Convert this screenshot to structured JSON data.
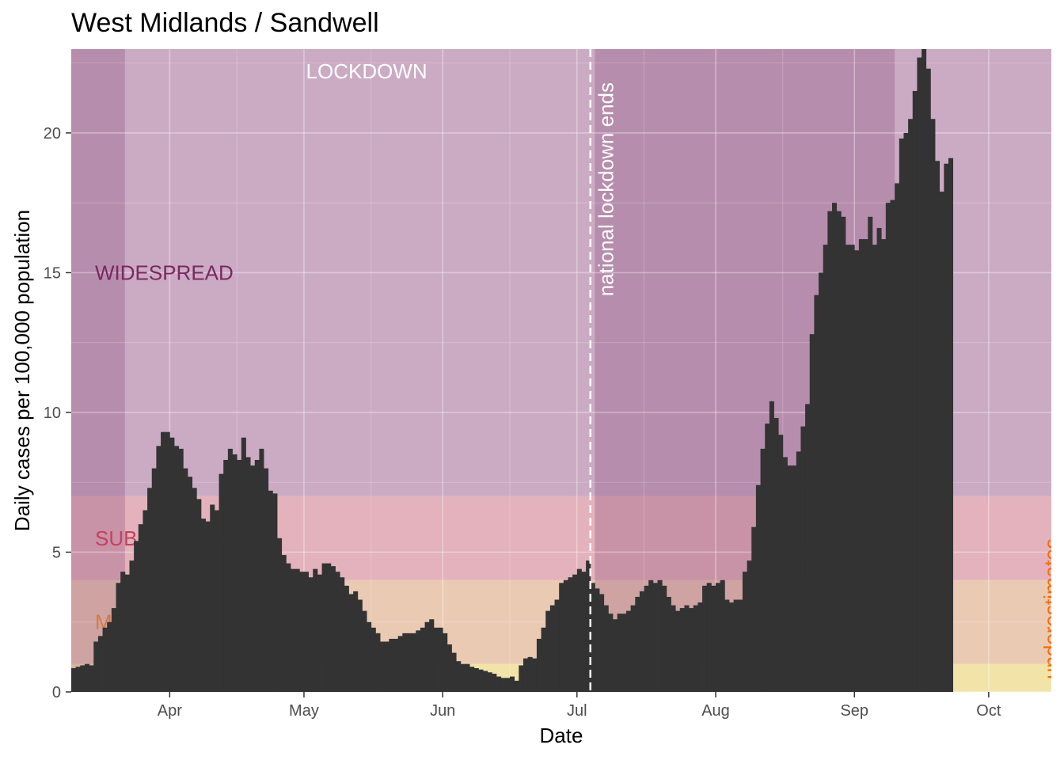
{
  "chart_data": {
    "type": "bar",
    "title": "West Midlands / Sandwell",
    "xlabel": "Date",
    "ylabel": "Daily cases per 100,000 population",
    "x_start": "2020-03-10",
    "x_end": "2020-10-15",
    "ylim": [
      0,
      23
    ],
    "y_ticks": [
      0,
      5,
      10,
      15,
      20
    ],
    "x_ticks": [
      {
        "date": "2020-04-01",
        "label": "Apr"
      },
      {
        "date": "2020-05-01",
        "label": "May"
      },
      {
        "date": "2020-06-01",
        "label": "Jun"
      },
      {
        "date": "2020-07-01",
        "label": "Jul"
      },
      {
        "date": "2020-08-01",
        "label": "Aug"
      },
      {
        "date": "2020-09-01",
        "label": "Sep"
      },
      {
        "date": "2020-10-01",
        "label": "Oct"
      }
    ],
    "grid": true,
    "bar_color": "#333333",
    "bands": [
      {
        "label": "",
        "ymin": 0,
        "ymax": 1,
        "color": "#f2e4a8"
      },
      {
        "label": "MODERATE",
        "ymin": 1,
        "ymax": 4,
        "color": "#ebcab3"
      },
      {
        "label": "SUBSTANTIAL",
        "ymin": 4,
        "ymax": 7,
        "color": "#e3b2bc"
      },
      {
        "label": "WIDESPREAD",
        "ymin": 7,
        "ymax": 23,
        "color": "#cbabc4"
      }
    ],
    "band_label_colors": {
      "WIDESPREAD": "#7a2861",
      "SUBSTANTIAL": "#c8405c",
      "MODERATE": "#d87844"
    },
    "shaded_periods": [
      {
        "start": "2020-03-10",
        "end": "2020-03-22",
        "color": "#8a4a78",
        "opacity": 0.3
      },
      {
        "start": "2020-07-05",
        "end": "2020-09-10",
        "color": "#8a4a78",
        "opacity": 0.3
      }
    ],
    "lockdown_label": "LOCKDOWN",
    "lockdown_label_date": "2020-05-15",
    "lockdown_label_y": 22.2,
    "vline": {
      "date": "2020-07-04",
      "label": "national lockdown ends",
      "color": "#ffffff"
    },
    "underestimates": {
      "label": "underestimates",
      "color": "#ff6a00",
      "date": "2020-10-12"
    },
    "daily_values": [
      0.85,
      0.9,
      0.95,
      1.0,
      0.95,
      1.8,
      2.0,
      2.3,
      2.5,
      3.0,
      3.9,
      4.3,
      4.2,
      4.7,
      5.4,
      6.0,
      6.5,
      7.3,
      8.0,
      8.8,
      9.3,
      9.3,
      9.1,
      8.8,
      8.7,
      8.0,
      7.7,
      7.3,
      6.9,
      6.2,
      6.1,
      6.7,
      6.5,
      7.8,
      8.3,
      8.7,
      8.5,
      8.3,
      9.1,
      8.4,
      8.1,
      8.3,
      8.7,
      8.0,
      7.2,
      7.1,
      5.5,
      4.9,
      4.6,
      4.4,
      4.4,
      4.3,
      4.3,
      4.1,
      4.4,
      4.2,
      4.6,
      4.6,
      4.5,
      4.3,
      4.1,
      3.8,
      3.5,
      3.6,
      3.3,
      2.9,
      2.5,
      2.3,
      2.1,
      1.8,
      1.8,
      1.9,
      1.9,
      2.0,
      2.1,
      2.1,
      2.1,
      2.2,
      2.3,
      2.5,
      2.6,
      2.3,
      2.3,
      2.1,
      1.7,
      1.4,
      1.1,
      1.0,
      1.0,
      0.9,
      0.85,
      0.8,
      0.75,
      0.7,
      0.65,
      0.55,
      0.5,
      0.5,
      0.55,
      0.4,
      0.95,
      1.2,
      1.25,
      1.2,
      1.9,
      2.3,
      2.9,
      3.1,
      3.3,
      3.9,
      4.0,
      4.1,
      4.2,
      4.4,
      4.3,
      4.7,
      3.9,
      3.7,
      3.5,
      3.1,
      2.8,
      2.6,
      2.8,
      2.8,
      2.9,
      3.1,
      3.4,
      3.6,
      3.8,
      4.0,
      3.9,
      4.0,
      3.8,
      3.4,
      3.1,
      2.9,
      3.0,
      3.1,
      3.0,
      3.1,
      3.2,
      3.8,
      3.9,
      3.8,
      3.9,
      4.0,
      3.3,
      3.2,
      3.3,
      3.3,
      4.3,
      4.7,
      5.9,
      7.4,
      8.7,
      9.6,
      10.4,
      9.8,
      9.2,
      8.4,
      8.1,
      8.1,
      8.6,
      9.5,
      10.3,
      12.8,
      14.2,
      15.0,
      16.0,
      17.2,
      17.5,
      17.2,
      17.0,
      16.0,
      16.0,
      15.8,
      16.2,
      16.2,
      17.0,
      16.0,
      16.6,
      16.2,
      17.5,
      17.6,
      18.2,
      19.8,
      20.0,
      20.5,
      21.5,
      22.7,
      23.0,
      22.3,
      20.5,
      19.0,
      17.9,
      18.9,
      19.1
    ]
  }
}
